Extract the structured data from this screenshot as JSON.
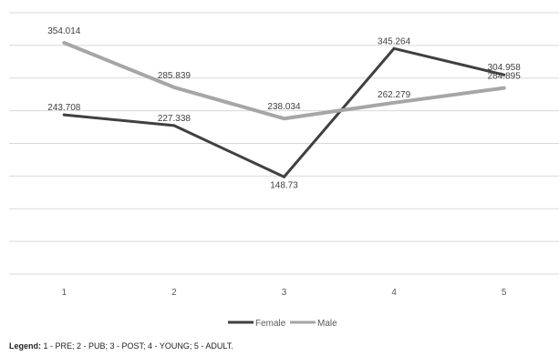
{
  "chart_data": {
    "type": "line",
    "title": "",
    "xlabel": "",
    "ylabel": "",
    "categories": [
      "1",
      "2",
      "3",
      "4",
      "5"
    ],
    "ylim": [
      0,
      400
    ],
    "grid": true,
    "legend_position": "bottom",
    "series": [
      {
        "name": "Female",
        "color": "#404040",
        "values": [
          243.708,
          227.338,
          148.73,
          345.264,
          304.958
        ],
        "labels": [
          "243.708",
          "227.338",
          "148.73",
          "345.264",
          "304.958"
        ]
      },
      {
        "name": "Male",
        "color": "#a6a6a6",
        "values": [
          354.014,
          285.839,
          238.034,
          262.279,
          284.895
        ],
        "labels": [
          "354.014",
          "285.839",
          "238.034",
          "262.279",
          "284.895"
        ]
      }
    ]
  },
  "footnote": {
    "label": "Legend:",
    "text": " 1 - PRE; 2 - PUB; 3 - POST; 4 - YOUNG; 5 - ADULT."
  }
}
